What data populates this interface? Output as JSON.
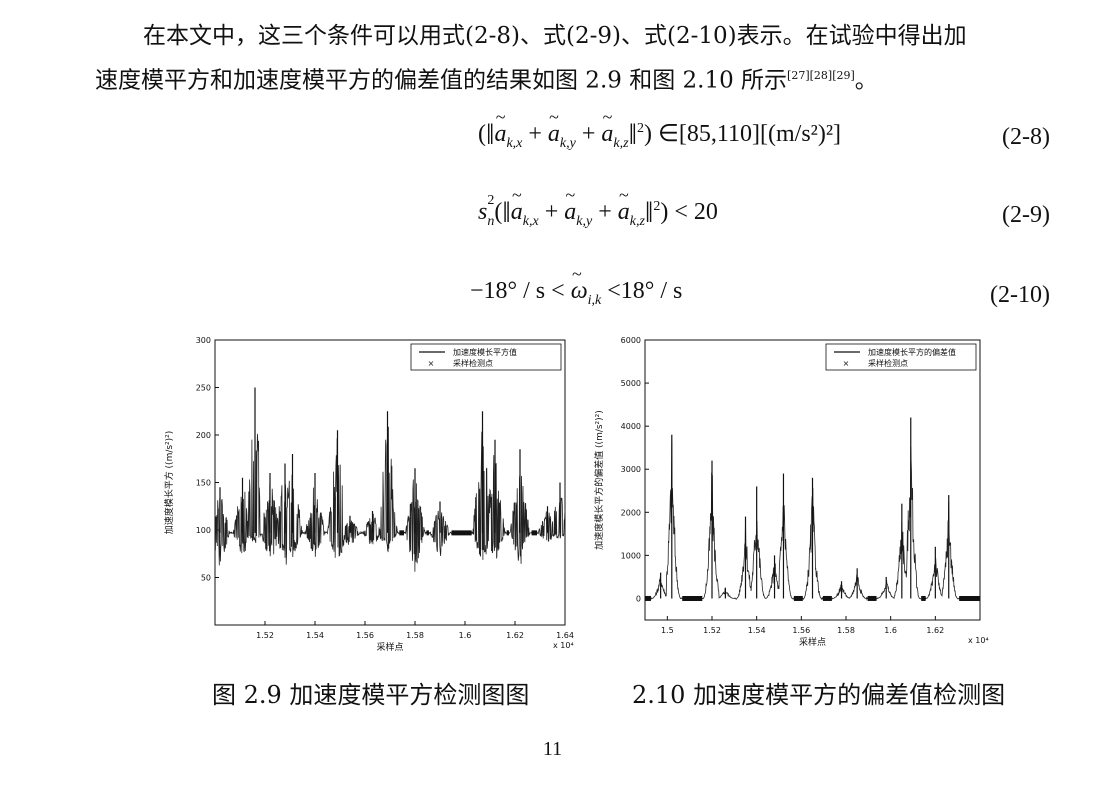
{
  "paragraph": {
    "line1": "在本文中，这三个条件可以用式(2-8)、式(2-9)、式(2-10)表示。在试验中得出加",
    "line2": "速度模平方和加速度模平方的偏差值的结果如图 2.9 和图 2.10 所示",
    "citation": "[27][28][29]",
    "end": "。"
  },
  "equations": [
    {
      "number": "(2-8)",
      "rhs": "∈[85,110][(m/s²)²]"
    },
    {
      "number": "(2-9)",
      "prefix": "s",
      "rhs": "< 20"
    },
    {
      "number": "(2-10)",
      "left": "−18° / s <",
      "right": "<18° / s"
    }
  ],
  "captions": {
    "fig9": "图 2.9    加速度模平方检测图图",
    "fig10": "2.10    加速度模平方的偏差值检测图"
  },
  "page_number": "11",
  "chart_data": [
    {
      "type": "line",
      "ylabel": "加速度模长平方 ((m/s²)²)",
      "xlabel": "采样点",
      "x_multiplier": "x 10⁴",
      "xlim": [
        1.5,
        1.64
      ],
      "ylim": [
        0,
        300
      ],
      "xticks": [
        "1.52",
        "1.54",
        "1.56",
        "1.58",
        "1.6",
        "1.62",
        "1.64"
      ],
      "yticks": [
        "50",
        "100",
        "150",
        "200",
        "250",
        "300"
      ],
      "legend": [
        "加速度模长平方值",
        "采样检测点"
      ],
      "legend_position": "top-right",
      "baseline": 97,
      "spikes": [
        {
          "x": 1.502,
          "peak": 145,
          "low": 60
        },
        {
          "x": 1.511,
          "peak": 155,
          "low": 70
        },
        {
          "x": 1.516,
          "peak": 250,
          "low": 85
        },
        {
          "x": 1.522,
          "peak": 160,
          "low": 60
        },
        {
          "x": 1.528,
          "peak": 170,
          "low": 55
        },
        {
          "x": 1.531,
          "peak": 180,
          "low": 70
        },
        {
          "x": 1.54,
          "peak": 160,
          "low": 70
        },
        {
          "x": 1.549,
          "peak": 205,
          "low": 60
        },
        {
          "x": 1.554,
          "peak": 115,
          "low": 80
        },
        {
          "x": 1.563,
          "peak": 120,
          "low": 80
        },
        {
          "x": 1.569,
          "peak": 225,
          "low": 75
        },
        {
          "x": 1.58,
          "peak": 165,
          "low": 55
        },
        {
          "x": 1.59,
          "peak": 130,
          "low": 70
        },
        {
          "x": 1.607,
          "peak": 225,
          "low": 60
        },
        {
          "x": 1.612,
          "peak": 195,
          "low": 65
        },
        {
          "x": 1.622,
          "peak": 185,
          "low": 60
        },
        {
          "x": 1.633,
          "peak": 125,
          "low": 85
        },
        {
          "x": 1.638,
          "peak": 150,
          "low": 90
        }
      ]
    },
    {
      "type": "line",
      "ylabel": "加速度模长平方的偏差值 ((m/s²)²)",
      "xlabel": "采样点",
      "x_multiplier": "x 10⁴",
      "xlim": [
        1.49,
        1.64
      ],
      "ylim": [
        -500,
        6000
      ],
      "xticks": [
        "1.5",
        "1.52",
        "1.54",
        "1.56",
        "1.58",
        "1.6",
        "1.62"
      ],
      "yticks": [
        "0",
        "1000",
        "2000",
        "3000",
        "4000",
        "5000",
        "6000"
      ],
      "legend": [
        "加速度模长平方的偏差值",
        "采样检测点"
      ],
      "legend_position": "top-right",
      "baseline": 0,
      "spikes": [
        {
          "x": 1.497,
          "peak": 600
        },
        {
          "x": 1.502,
          "peak": 3800
        },
        {
          "x": 1.52,
          "peak": 3200
        },
        {
          "x": 1.526,
          "peak": 250
        },
        {
          "x": 1.535,
          "peak": 1900
        },
        {
          "x": 1.54,
          "peak": 2600
        },
        {
          "x": 1.548,
          "peak": 1000
        },
        {
          "x": 1.552,
          "peak": 2900
        },
        {
          "x": 1.565,
          "peak": 2800
        },
        {
          "x": 1.578,
          "peak": 400
        },
        {
          "x": 1.585,
          "peak": 700
        },
        {
          "x": 1.598,
          "peak": 500
        },
        {
          "x": 1.605,
          "peak": 2200
        },
        {
          "x": 1.609,
          "peak": 4200
        },
        {
          "x": 1.62,
          "peak": 1200
        },
        {
          "x": 1.626,
          "peak": 2400
        }
      ]
    }
  ]
}
